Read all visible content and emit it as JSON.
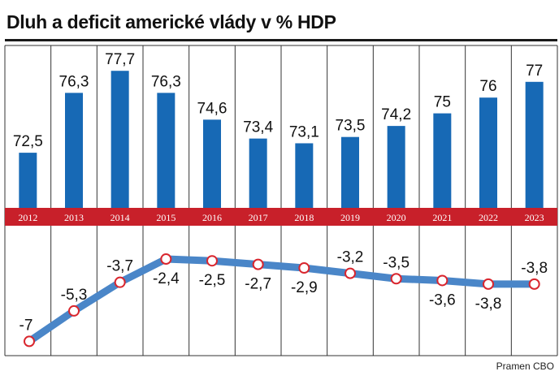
{
  "title": "Dluh a deficit americké vlády v % HDP",
  "source": "Pramen CBO",
  "colors": {
    "bar": "#1769b5",
    "line": "#4a86c8",
    "marker_fill": "#ffffff",
    "marker_stroke": "#d9262e",
    "year_band": "#c8202a",
    "year_text": "#ffffff",
    "grid": "#333333"
  },
  "chart_data": [
    {
      "type": "bar",
      "categories": [
        "2012",
        "2013",
        "2014",
        "2015",
        "2016",
        "2017",
        "2018",
        "2019",
        "2020",
        "2021",
        "2022",
        "2023"
      ],
      "values": [
        72.5,
        76.3,
        77.7,
        76.3,
        74.6,
        73.4,
        73.1,
        73.5,
        74.2,
        75,
        76,
        77
      ],
      "value_labels": [
        "72,5",
        "76,3",
        "77,7",
        "76,3",
        "74,6",
        "73,4",
        "73,1",
        "73,5",
        "74,2",
        "75",
        "76",
        "77"
      ],
      "ylim": [
        69,
        79
      ],
      "grid": true
    },
    {
      "type": "line",
      "categories": [
        "2012",
        "2013",
        "2014",
        "2015",
        "2016",
        "2017",
        "2018",
        "2019",
        "2020",
        "2021",
        "2022",
        "2023"
      ],
      "values": [
        -7,
        -5.3,
        -3.7,
        -2.4,
        -2.5,
        -2.7,
        -2.9,
        -3.2,
        -3.5,
        -3.6,
        -3.8,
        -3.8
      ],
      "value_labels": [
        "-7",
        "-5,3",
        "-3,7",
        "-2,4",
        "-2,5",
        "-2,7",
        "-2,9",
        "-3,2",
        "-3,5",
        "-3,6",
        "-3,8",
        "-3,8"
      ],
      "ylim": [
        -7.3,
        -1.9
      ],
      "grid": true
    }
  ]
}
